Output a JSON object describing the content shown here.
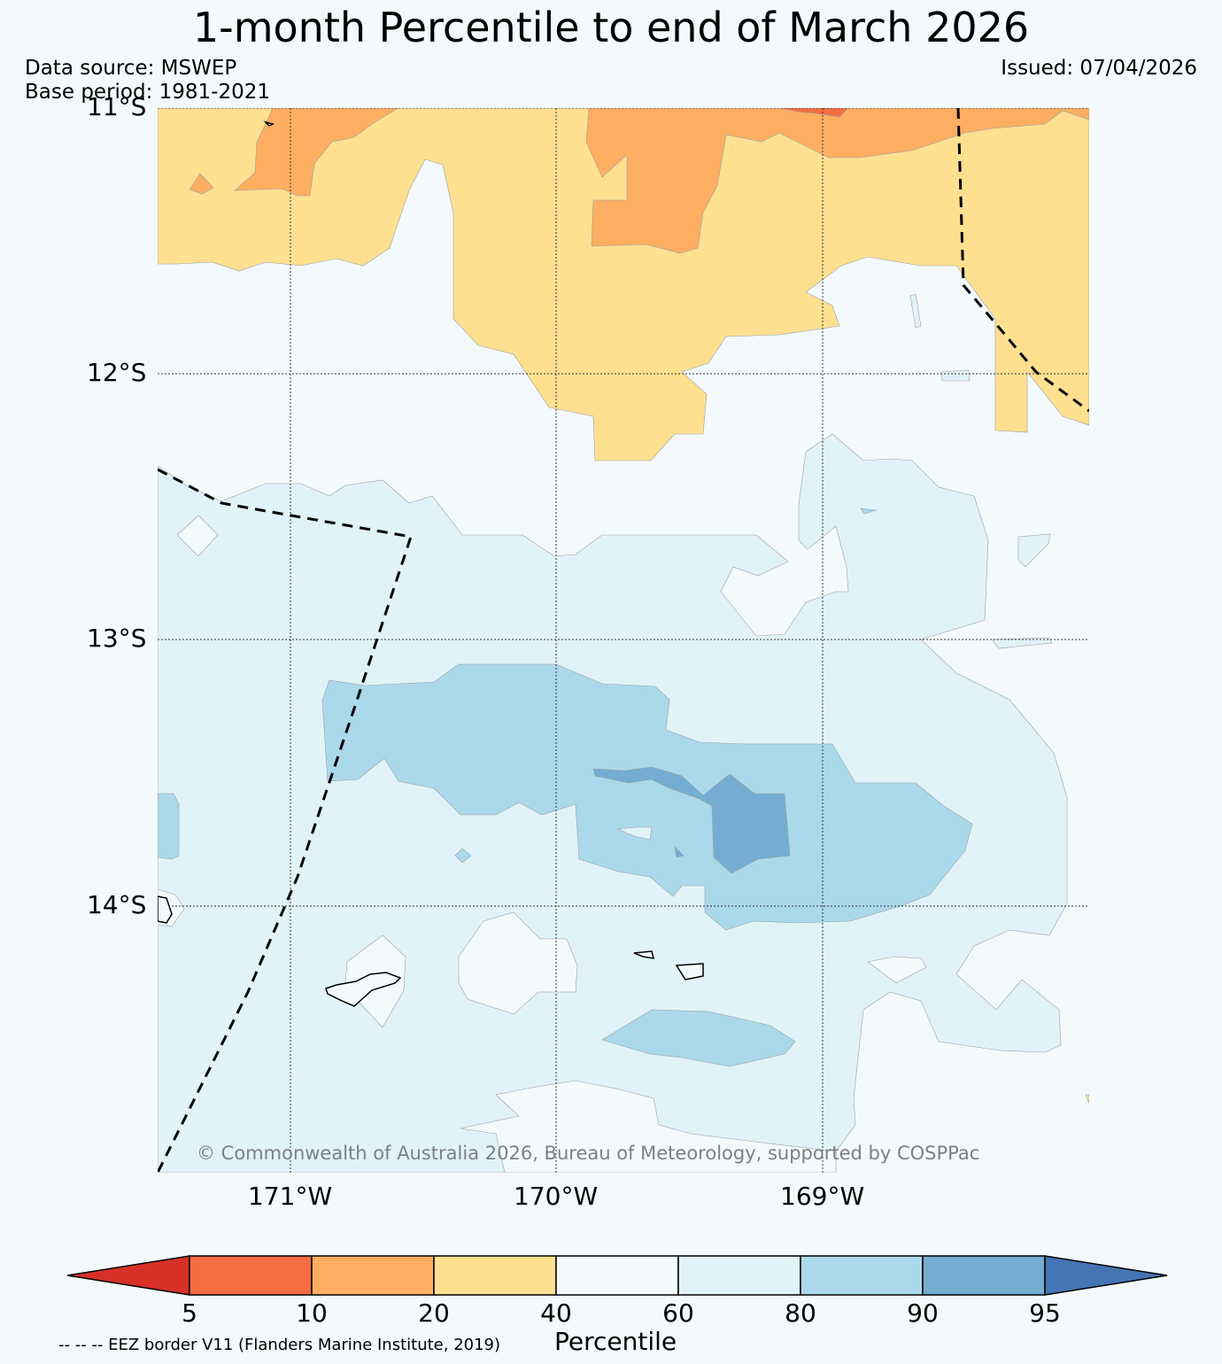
{
  "title": "1-month Percentile to end of March 2026",
  "data_source": "Data source: MSWEP",
  "base_period": "Base period: 1981-2021",
  "issued": "Issued: 07/04/2026",
  "latitude_labels": [
    "11°S",
    "12°S",
    "13°S",
    "14°S"
  ],
  "longitude_labels": [
    "171°W",
    "170°W",
    "169°W"
  ],
  "copyright": "© Commonwealth of Australia 2026, Bureau of Meteorology, supported by COSPPac",
  "colorbar": {
    "title": "Percentile",
    "ticks": [
      "5",
      "10",
      "20",
      "40",
      "60",
      "80",
      "90",
      "95"
    ],
    "colors": {
      "below_5": "#d73027",
      "5_10": "#f46d43",
      "10_20": "#fdae61",
      "20_40": "#fee090",
      "40_60": "#f4f9fc",
      "60_80": "#e0f3f8",
      "80_90": "#abd9e9",
      "90_95": "#74add1",
      "above_95": "#4575b4"
    }
  },
  "eez_note": "-- -- -- EEZ border V11 (Flanders Marine Institute, 2019)"
}
